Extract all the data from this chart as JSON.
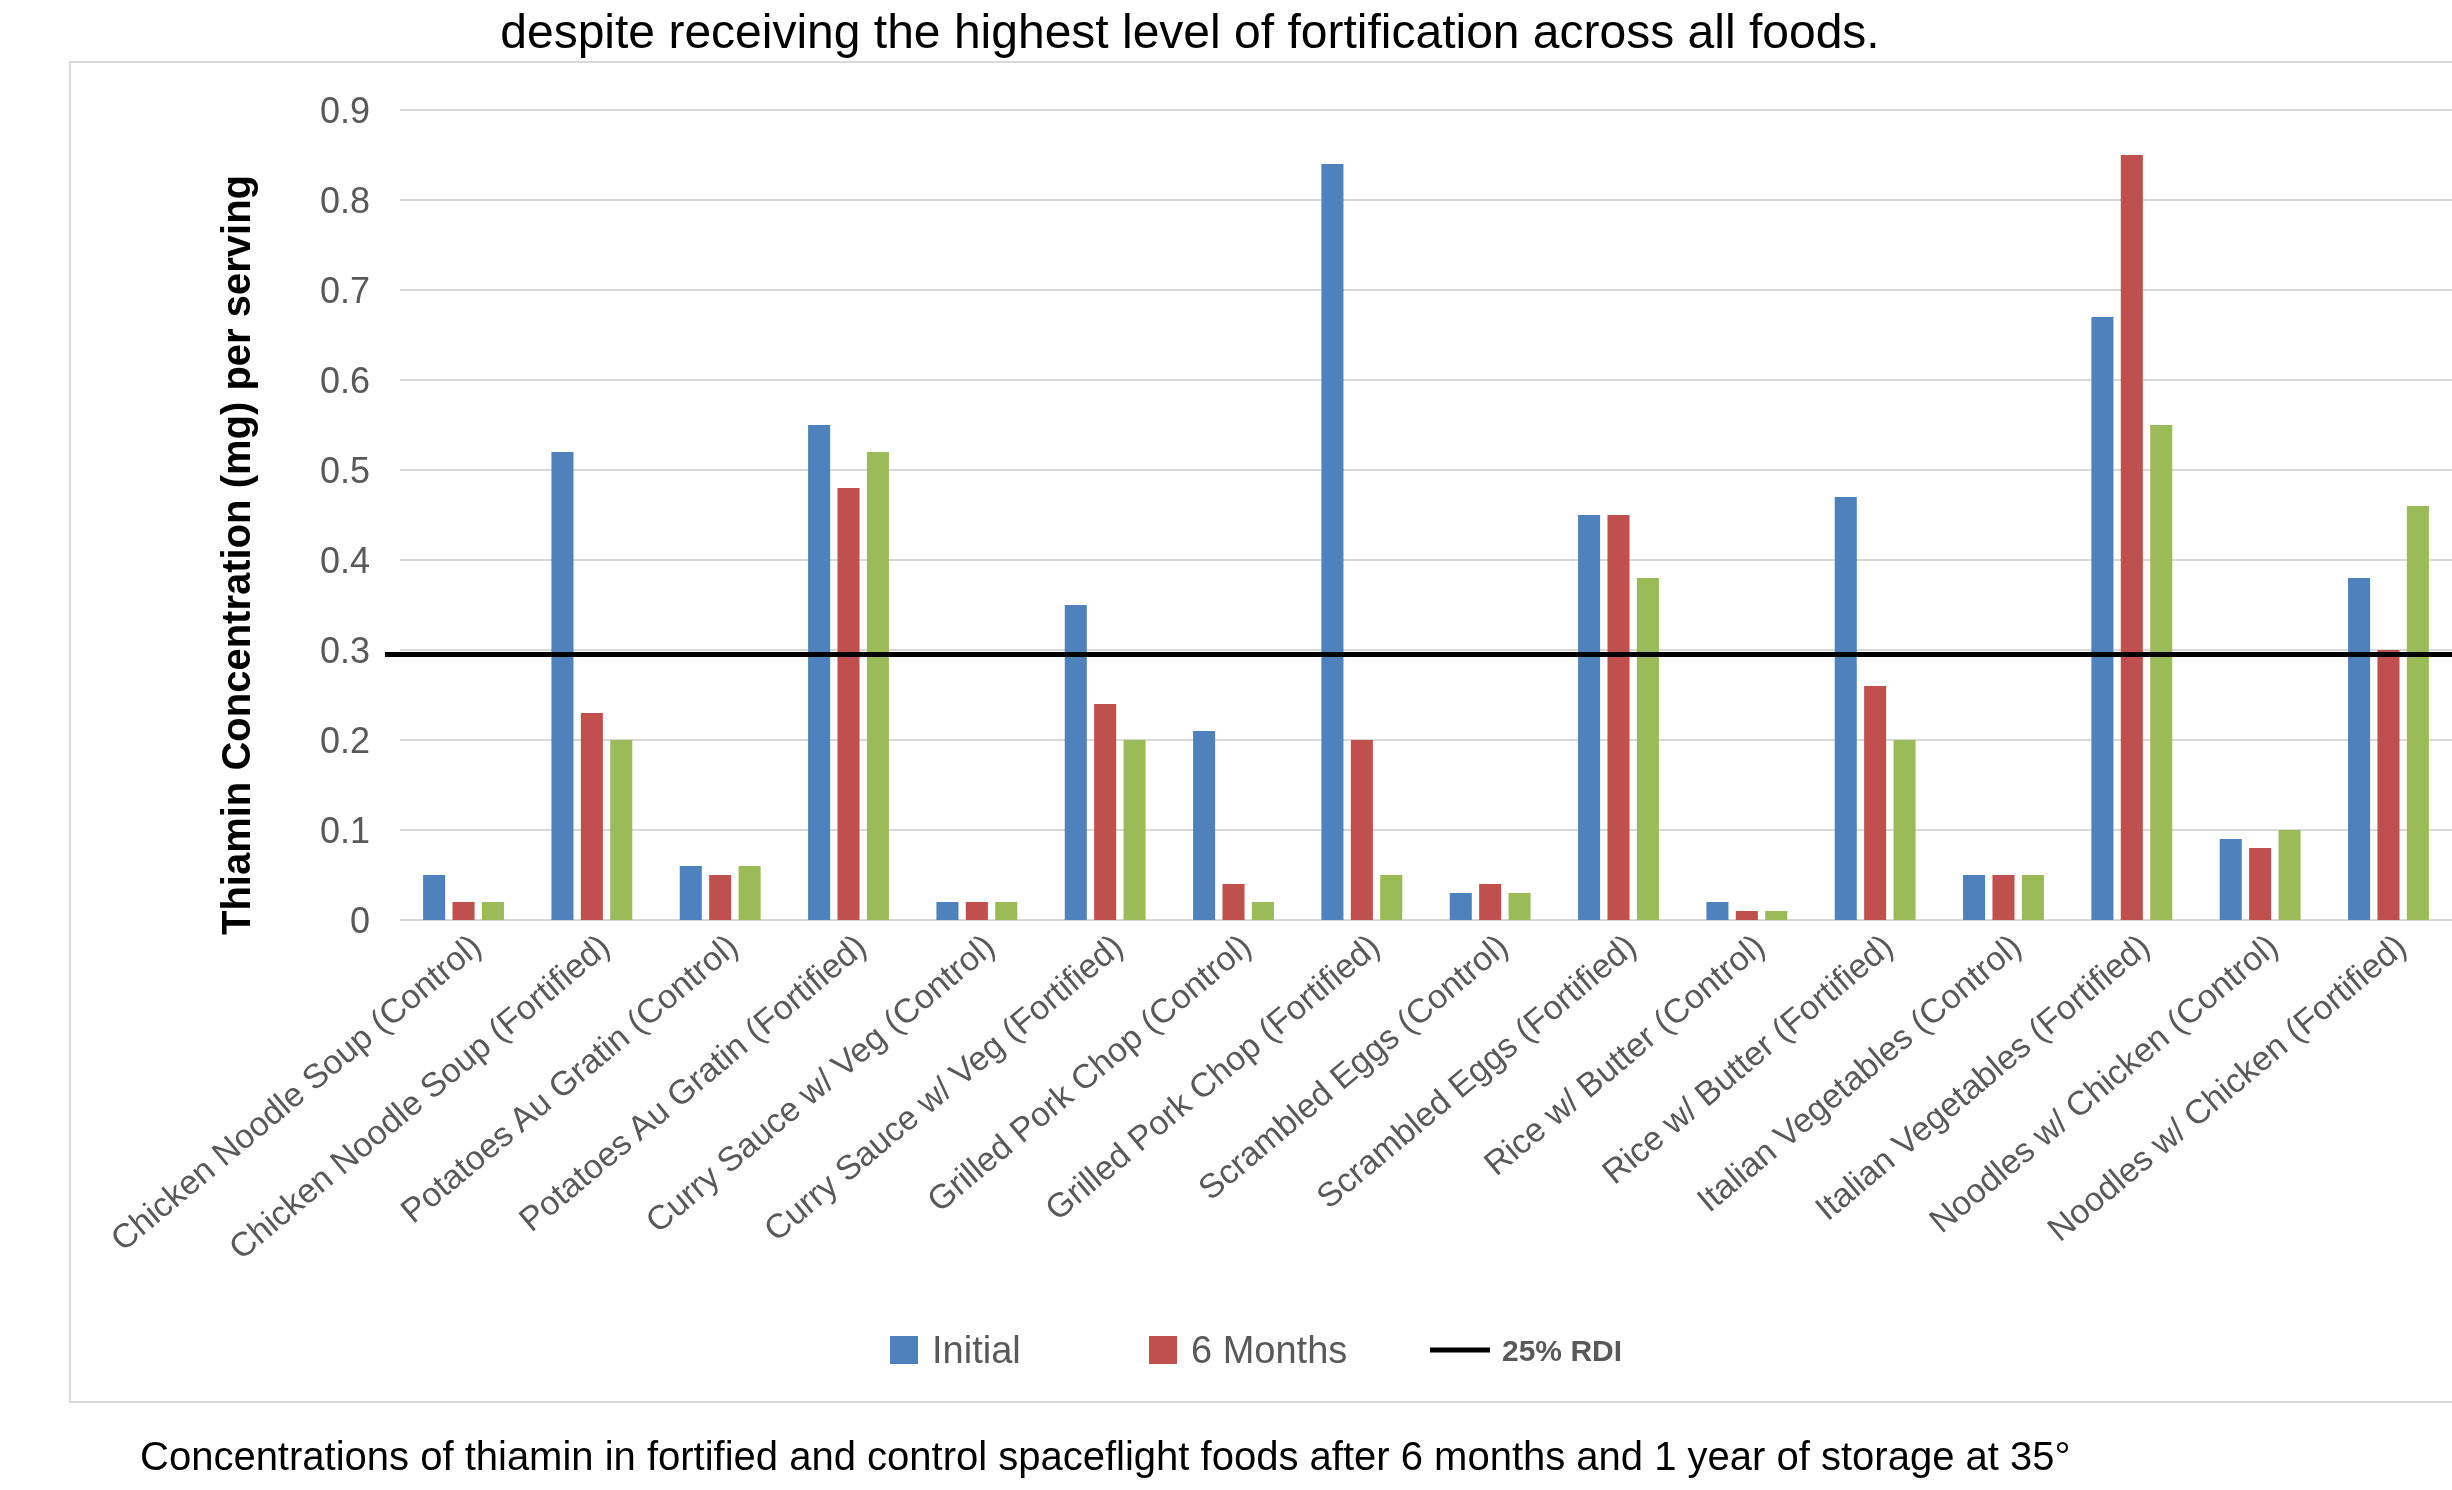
{
  "chart_data": {
    "type": "bar",
    "title": "despite receiving the highest level of fortification across all foods.",
    "ylabel": "Thiamin Concentration (mg) per serving",
    "categories": [
      "Chicken Noodle Soup (Control)",
      "Chicken Noodle Soup (Fortified)",
      "Potatoes Au Gratin (Control)",
      "Potatoes Au Gratin (Fortified)",
      "Curry Sauce w/ Veg (Control)",
      "Curry Sauce w/ Veg (Fortified)",
      "Grilled Pork Chop (Control)",
      "Grilled Pork Chop (Fortified)",
      "Scrambled Eggs (Control)",
      "Scrambled Eggs (Fortified)",
      "Rice w/ Butter (Control)",
      "Rice w/ Butter (Fortified)",
      "Italian Vegetables (Control)",
      "Italian Vegetables (Fortified)",
      "Noodles w/ Chicken (Control)",
      "Noodles w/ Chicken (Fortified)"
    ],
    "series": [
      {
        "name": "Initial",
        "color": "#4f81bd",
        "values": [
          0.05,
          0.52,
          0.06,
          0.55,
          0.02,
          0.35,
          0.21,
          0.84,
          0.03,
          0.45,
          0.02,
          0.47,
          0.05,
          0.67,
          0.09,
          0.38
        ]
      },
      {
        "name": "6 Months",
        "color": "#c0504d",
        "values": [
          0.02,
          0.23,
          0.05,
          0.48,
          0.02,
          0.24,
          0.04,
          0.2,
          0.04,
          0.45,
          0.01,
          0.26,
          0.05,
          0.85,
          0.08,
          0.3
        ]
      },
      {
        "color": "#9bbb59",
        "values": [
          0.02,
          0.2,
          0.06,
          0.52,
          0.02,
          0.2,
          0.02,
          0.05,
          0.03,
          0.38,
          0.01,
          0.2,
          0.05,
          0.55,
          0.1,
          0.46
        ]
      }
    ],
    "ylim": [
      0,
      0.9
    ],
    "yticks": [
      0,
      0.1,
      0.2,
      0.3,
      0.4,
      0.5,
      0.6,
      0.7,
      0.8,
      0.9
    ],
    "grid": "y",
    "legend": "bottom",
    "ref_lines": [
      {
        "axis": "y",
        "value": 0.295,
        "label": "25% RDI",
        "color": "#000000"
      }
    ],
    "annotations": [
      "Concentrations of thiamin in fortified and control spaceflight foods after 6 months and 1 year of storage at 35°"
    ]
  }
}
